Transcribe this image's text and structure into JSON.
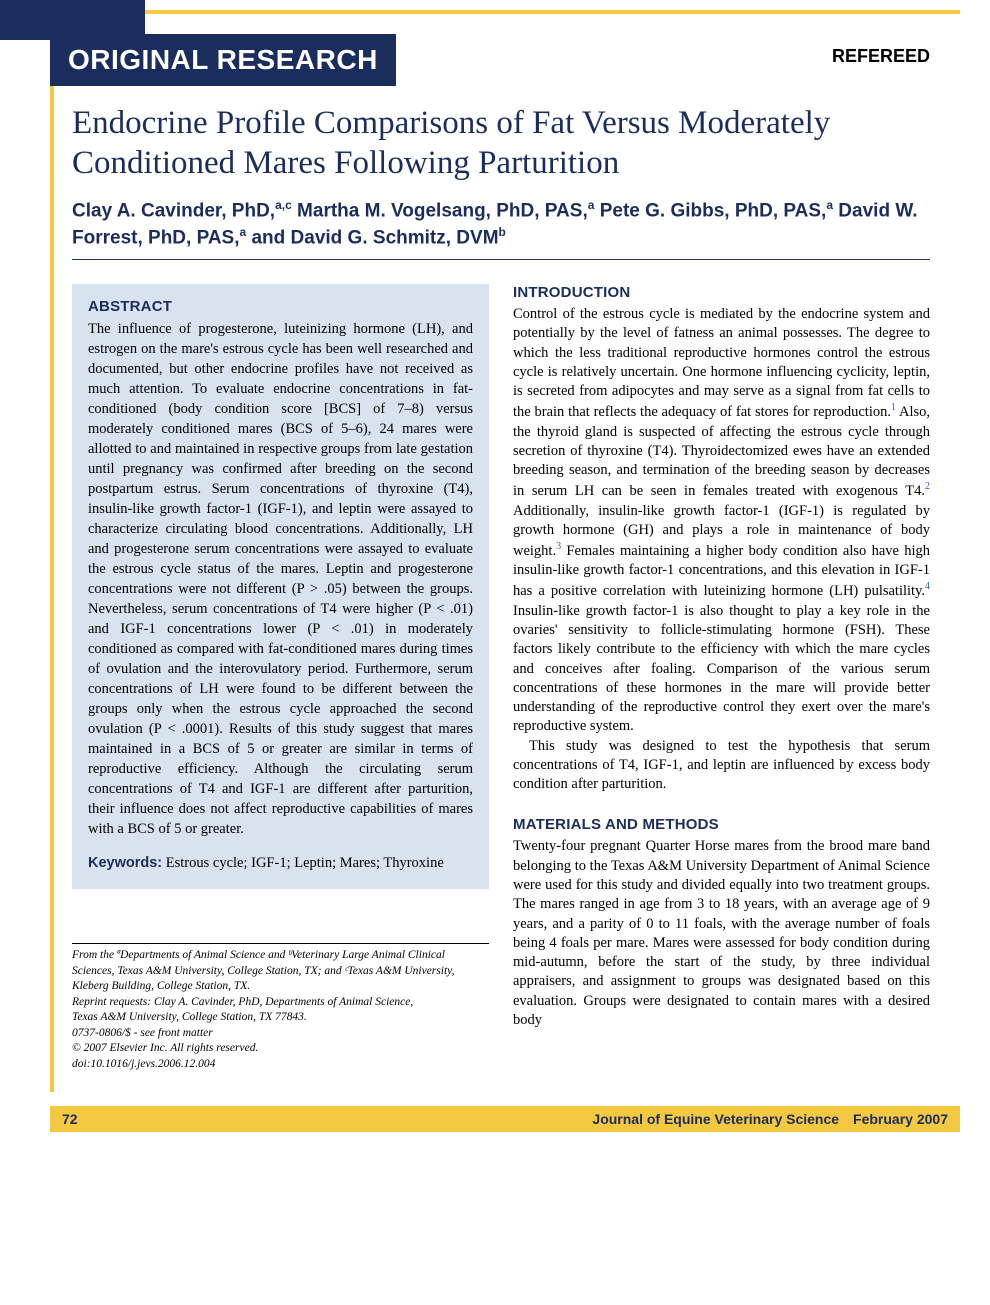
{
  "header": {
    "badge": "ORIGINAL RESEARCH",
    "refereed": "REFEREED"
  },
  "title": "Endocrine Profile Comparisons of Fat Versus Moderately Conditioned Mares Following Parturition",
  "authors_html": "Clay A. Cavinder, PhD,<sup>a,c</sup> Martha M. Vogelsang, PhD, PAS,<sup>a</sup> Pete G. Gibbs, PhD, PAS,<sup>a</sup> David W. Forrest, PhD, PAS,<sup>a</sup> and David G. Schmitz, DVM<sup>b</sup>",
  "abstract": {
    "heading": "ABSTRACT",
    "text": "The influence of progesterone, luteinizing hormone (LH), and estrogen on the mare's estrous cycle has been well researched and documented, but other endocrine profiles have not received as much attention. To evaluate endocrine concentrations in fat-conditioned (body condition score [BCS] of 7–8) versus moderately conditioned mares (BCS of 5–6), 24 mares were allotted to and maintained in respective groups from late gestation until pregnancy was confirmed after breeding on the second postpartum estrus. Serum concentrations of thyroxine (T4), insulin-like growth factor-1 (IGF-1), and leptin were assayed to characterize circulating blood concentrations. Additionally, LH and progesterone serum concentrations were assayed to evaluate the estrous cycle status of the mares. Leptin and progesterone concentrations were not different (P > .05) between the groups. Nevertheless, serum concentrations of T4 were higher (P < .01) and IGF-1 concentrations lower (P < .01) in moderately conditioned as compared with fat-conditioned mares during times of ovulation and the interovulatory period. Furthermore, serum concentrations of LH were found to be different between the groups only when the estrous cycle approached the second ovulation (P < .0001). Results of this study suggest that mares maintained in a BCS of 5 or greater are similar in terms of reproductive efficiency. Although the circulating serum concentrations of T4 and IGF-1 are different after parturition, their influence does not affect reproductive capabilities of mares with a BCS of 5 or greater.",
    "keywords_label": "Keywords:",
    "keywords_text": " Estrous cycle; IGF-1; Leptin; Mares; Thyroxine"
  },
  "introduction": {
    "heading": "INTRODUCTION",
    "p1": "Control of the estrous cycle is mediated by the endocrine system and potentially by the level of fatness an animal possesses. The degree to which the less traditional reproductive hormones control the estrous cycle is relatively uncertain. One hormone influencing cyclicity, leptin, is secreted from adipocytes and may serve as a signal from fat cells to the brain that reflects the adequacy of fat stores for reproduction.<sup>1</sup> Also, the thyroid gland is suspected of affecting the estrous cycle through secretion of thyroxine (T4). Thyroidectomized ewes have an extended breeding season, and termination of the breeding season by decreases in serum LH can be seen in females treated with exogenous T4.<sup>2</sup> Additionally, insulin-like growth factor-1 (IGF-1) is regulated by growth hormone (GH) and plays a role in maintenance of body weight.<sup>3</sup> Females maintaining a higher body condition also have high insulin-like growth factor-1 concentrations, and this elevation in IGF-1 has a positive correlation with luteinizing hormone (LH) pulsatility.<sup>4</sup> Insulin-like growth factor-1 is also thought to play a key role in the ovaries' sensitivity to follicle-stimulating hormone (FSH). These factors likely contribute to the efficiency with which the mare cycles and conceives after foaling. Comparison of the various serum concentrations of these hormones in the mare will provide better understanding of the reproductive control they exert over the mare's reproductive system.",
    "p2": "This study was designed to test the hypothesis that serum concentrations of T4, IGF-1, and leptin are influenced by excess body condition after parturition."
  },
  "methods": {
    "heading": "MATERIALS AND METHODS",
    "p1": "Twenty-four pregnant Quarter Horse mares from the brood mare band belonging to the Texas A&M University Department of Animal Science were used for this study and divided equally into two treatment groups. The mares ranged in age from 3 to 18 years, with an average age of 9 years, and a parity of 0 to 11 foals, with the average number of foals being 4 foals per mare. Mares were assessed for body condition during mid-autumn, before the start of the study, by three individual appraisers, and assignment to groups was designated based on this evaluation. Groups were designated to contain mares with a desired body"
  },
  "footnotes": {
    "l1": "From the ªDepartments of Animal Science and ᵇVeterinary Large Animal Clinical",
    "l2": "Sciences, Texas A&M University, College Station, TX; and ᶜTexas A&M University,",
    "l3": "Kleberg Building, College Station, TX.",
    "l4": "Reprint requests: Clay A. Cavinder, PhD, Departments of Animal Science,",
    "l5": "Texas A&M University, College Station, TX 77843.",
    "l6": "0737-0806/$ - see front matter",
    "l7": "© 2007 Elsevier Inc. All rights reserved.",
    "l8": "doi:10.1016/j.jevs.2006.12.004"
  },
  "footer": {
    "page": "72",
    "journal": "Journal of Equine Veterinary Science February 2007"
  },
  "colors": {
    "navy": "#1a2d5c",
    "gold": "#f5c842",
    "abstract_bg": "#d9e3ef",
    "link_blue": "#2a5fbd"
  }
}
